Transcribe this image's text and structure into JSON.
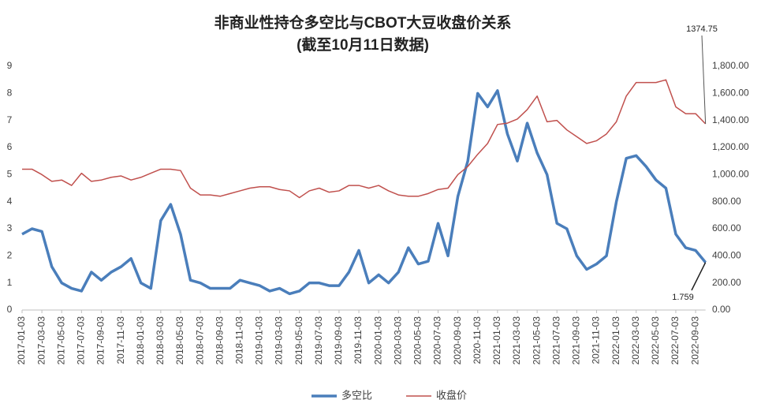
{
  "chart_data": {
    "type": "line",
    "title": "非商业性持仓多空比与CBOT大豆收盘价关系",
    "subtitle": "(截至10月11日数据)",
    "categories": [
      "2017-01-03",
      null,
      "2017-03-03",
      null,
      "2017-05-03",
      null,
      "2017-07-03",
      null,
      "2017-09-03",
      null,
      "2017-11-03",
      null,
      "2018-01-03",
      null,
      "2018-03-03",
      null,
      "2018-05-03",
      null,
      "2018-07-03",
      null,
      "2018-09-03",
      null,
      "2018-11-03",
      null,
      "2019-01-03",
      null,
      "2019-03-03",
      null,
      "2019-05-03",
      null,
      "2019-07-03",
      null,
      "2019-09-03",
      null,
      "2019-11-03",
      null,
      "2020-01-03",
      null,
      "2020-03-03",
      null,
      "2020-05-03",
      null,
      "2020-07-03",
      null,
      "2020-09-03",
      null,
      "2020-11-03",
      null,
      "2021-01-03",
      null,
      "2021-03-03",
      null,
      "2021-05-03",
      null,
      "2021-07-03",
      null,
      "2021-09-03",
      null,
      "2021-11-03",
      null,
      "2022-01-03",
      null,
      "2022-03-03",
      null,
      "2022-05-03",
      null,
      "2022-07-03",
      null,
      "2022-09-03",
      null
    ],
    "series": [
      {
        "name": "多空比",
        "color": "#4a7ebb",
        "values": [
          2.8,
          3.0,
          2.9,
          1.6,
          1.0,
          0.8,
          0.7,
          1.4,
          1.1,
          1.4,
          1.6,
          1.9,
          1.0,
          0.8,
          3.3,
          3.9,
          2.8,
          1.1,
          1.0,
          0.8,
          0.8,
          0.8,
          1.1,
          1.0,
          0.9,
          0.7,
          0.8,
          0.6,
          0.7,
          1.0,
          1.0,
          0.9,
          0.9,
          1.4,
          2.2,
          1.0,
          1.3,
          1.0,
          1.4,
          2.3,
          1.7,
          1.8,
          3.2,
          2.0,
          4.2,
          5.5,
          8.0,
          7.5,
          8.1,
          6.5,
          5.5,
          6.9,
          5.8,
          5.0,
          3.2,
          3.0,
          2.0,
          1.5,
          1.7,
          2.0,
          4.0,
          5.6,
          5.7,
          5.3,
          4.8,
          4.5,
          2.8,
          2.3,
          2.2,
          1.759
        ]
      },
      {
        "name": "收盘价",
        "color": "#c0504d",
        "axis": "y2",
        "values": [
          1040,
          1040,
          1000,
          950,
          960,
          920,
          1010,
          950,
          960,
          980,
          990,
          960,
          980,
          1010,
          1040,
          1040,
          1030,
          900,
          850,
          850,
          840,
          860,
          880,
          900,
          910,
          910,
          890,
          880,
          830,
          880,
          900,
          870,
          880,
          920,
          920,
          900,
          920,
          880,
          850,
          840,
          840,
          860,
          890,
          900,
          1000,
          1060,
          1150,
          1230,
          1370,
          1380,
          1410,
          1480,
          1580,
          1390,
          1400,
          1330,
          1280,
          1230,
          1250,
          1300,
          1390,
          1580,
          1680,
          1680,
          1680,
          1700,
          1500,
          1450,
          1450,
          1374.75
        ]
      }
    ],
    "annotations": [
      "1374.75",
      "1.759"
    ],
    "ylim": [
      0,
      9
    ],
    "yticks": [
      0,
      1,
      2,
      3,
      4,
      5,
      6,
      7,
      8,
      9
    ],
    "y2lim": [
      0,
      1800
    ],
    "y2ticks": [
      {
        "value": 0,
        "label": "0.00"
      },
      {
        "value": 200,
        "label": "200.00"
      },
      {
        "value": 400,
        "label": "400.00"
      },
      {
        "value": 600,
        "label": "600.00"
      },
      {
        "value": 800,
        "label": "800.00"
      },
      {
        "value": 1000,
        "label": "1,000.00"
      },
      {
        "value": 1200,
        "label": "1,200.00"
      },
      {
        "value": 1400,
        "label": "1,400.00"
      },
      {
        "value": 1600,
        "label": "1,600.00"
      },
      {
        "value": 1800,
        "label": "1,800.00"
      }
    ],
    "legend": "bottom"
  }
}
